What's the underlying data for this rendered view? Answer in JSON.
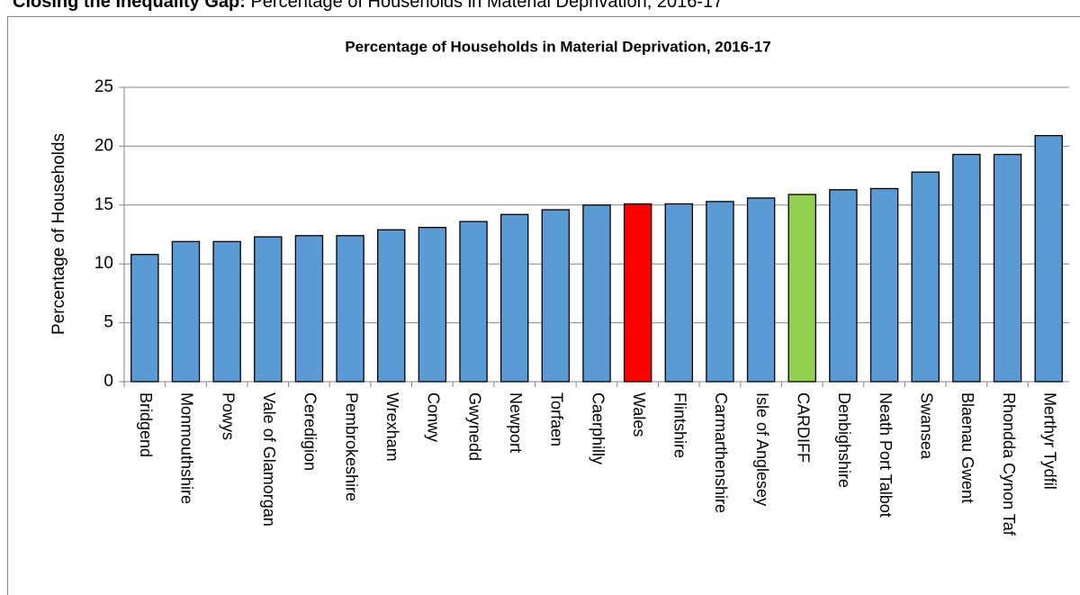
{
  "header": {
    "bold": "Closing the Inequality Gap:",
    "rest": "Percentage of Households in Material Deprivation, 2016-17"
  },
  "chart_data": {
    "type": "bar",
    "title": "Percentage of Households in Material Deprivation, 2016-17",
    "y_label": "Percentage of Households",
    "categories": [
      "Bridgend",
      "Monmouthshire",
      "Powys",
      "Vale of Glamorgan",
      "Ceredigion",
      "Pembrokeshire",
      "Wrexham",
      "Conwy",
      "Gwynedd",
      "Newport",
      "Torfaen",
      "Caerphilly",
      "Wales",
      "Flintshire",
      "Carmarthenshire",
      "Isle of Anglesey",
      "CARDIFF",
      "Denbighshire",
      "Neath Port Talbot",
      "Swansea",
      "Blaenau Gwent",
      "Rhondda Cynon Taf",
      "Merthyr Tydfil"
    ],
    "values": [
      10.8,
      11.9,
      11.9,
      12.3,
      12.4,
      12.4,
      12.9,
      13.1,
      13.6,
      14.2,
      14.6,
      15.0,
      15.1,
      15.1,
      15.3,
      15.6,
      15.9,
      16.3,
      16.4,
      17.8,
      19.3,
      19.3,
      20.9
    ],
    "colors": [
      "#5b9bd5",
      "#5b9bd5",
      "#5b9bd5",
      "#5b9bd5",
      "#5b9bd5",
      "#5b9bd5",
      "#5b9bd5",
      "#5b9bd5",
      "#5b9bd5",
      "#5b9bd5",
      "#5b9bd5",
      "#5b9bd5",
      "#ff0000",
      "#5b9bd5",
      "#5b9bd5",
      "#5b9bd5",
      "#92d050",
      "#5b9bd5",
      "#5b9bd5",
      "#5b9bd5",
      "#5b9bd5",
      "#5b9bd5",
      "#5b9bd5"
    ],
    "ylim": [
      0,
      25
    ],
    "yticks": [
      0,
      5,
      10,
      15,
      20,
      25
    ],
    "grid": true
  }
}
